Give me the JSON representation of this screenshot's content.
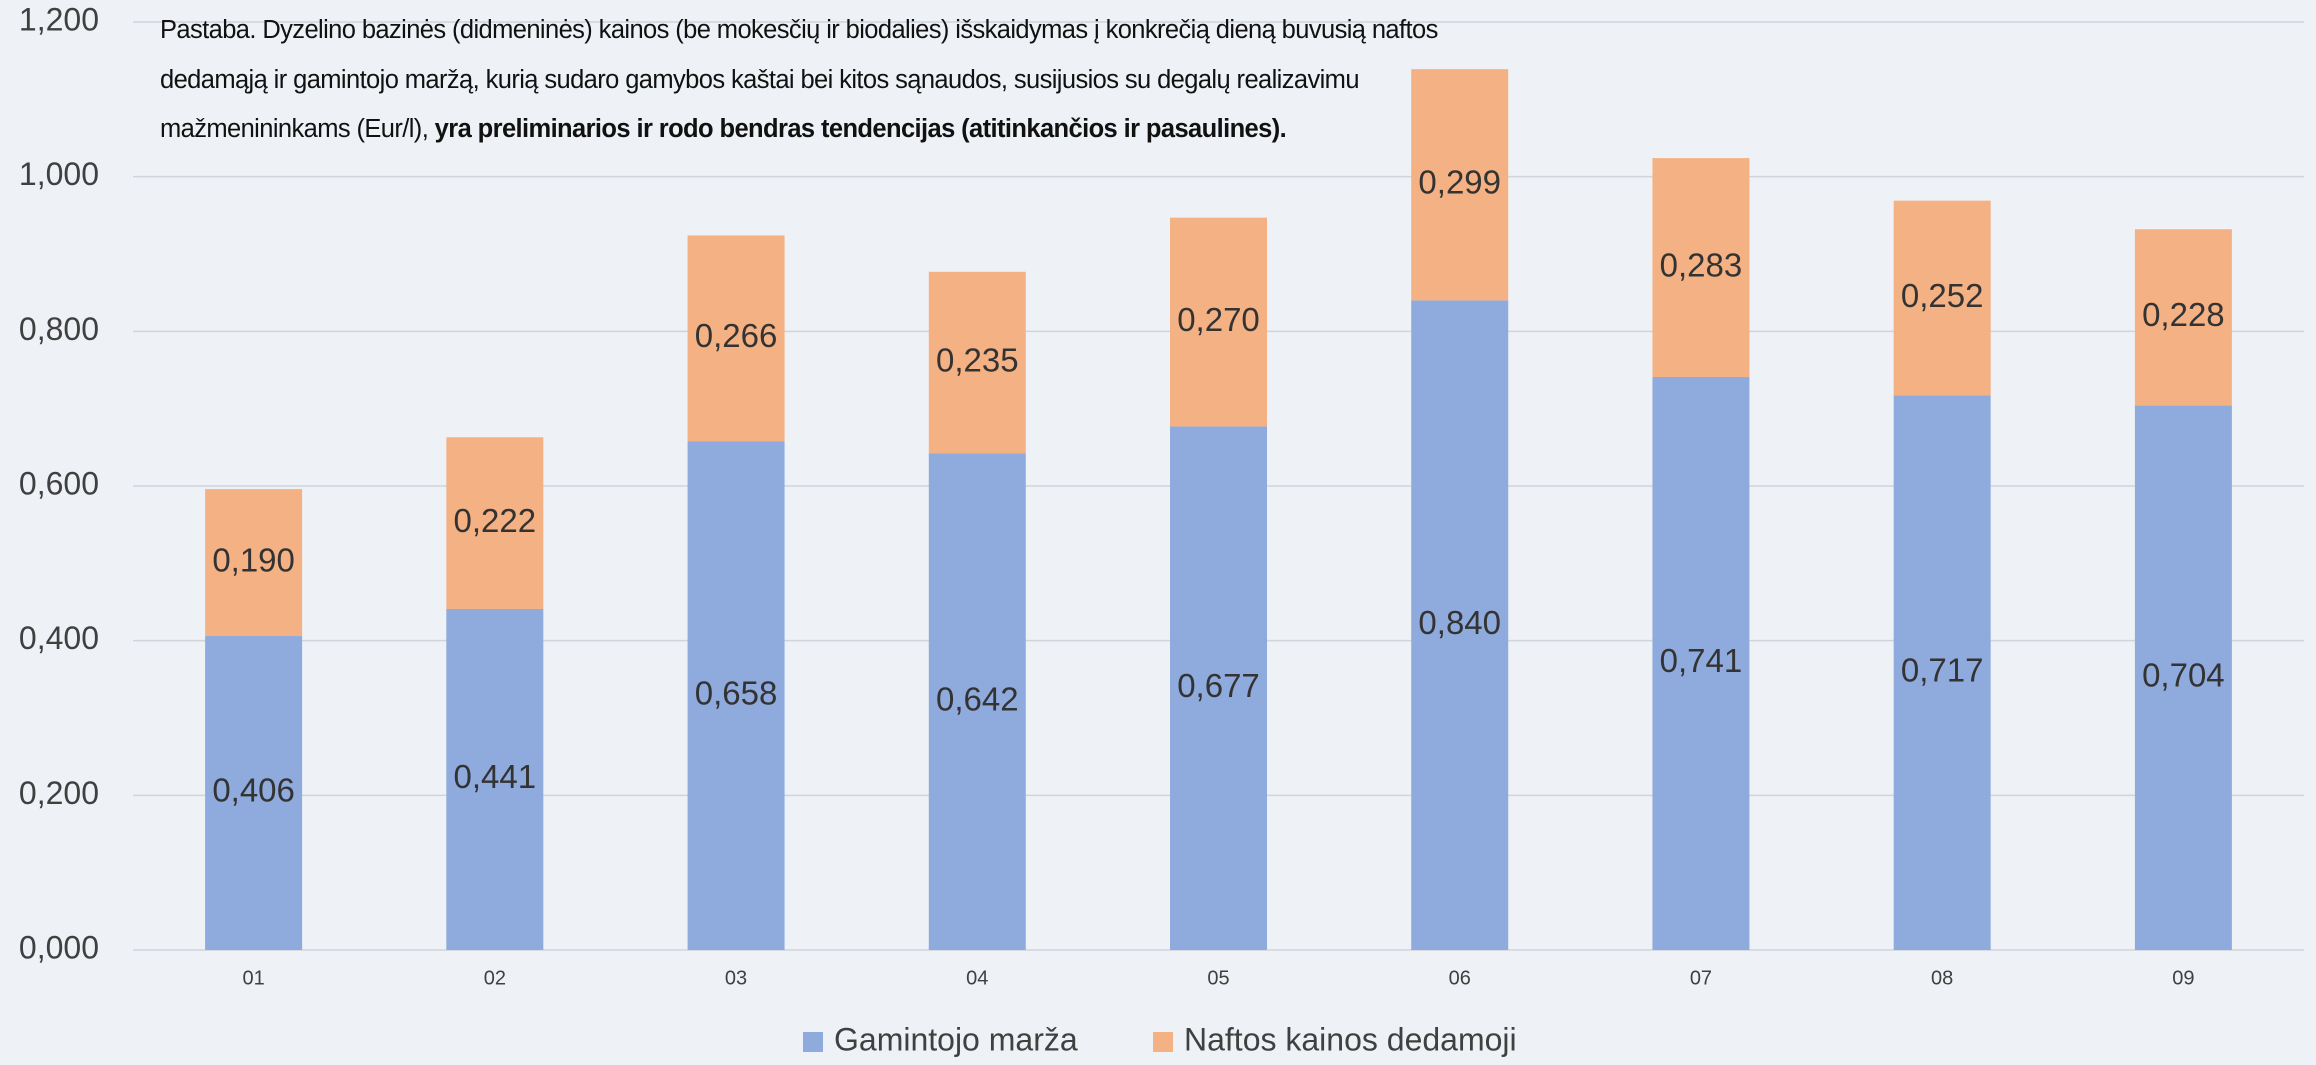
{
  "chart_data": {
    "type": "bar",
    "stacked": true,
    "note": [
      "Pastaba. Dyzelino bazinės (didmeninės) kainos (be mokesčių ir biodalies) išskaidymas į konkrečią dieną buvusią naftos dedamąją ir gamintojo maržą, kurią sudaro gamybos kaštai bei kitos sąnaudos, susijusios su degalų realizavimu mažmenininkams (Eur/l), ",
      "yra preliminarios ir rodo bendras tendencijas (atitinkančios ir pasaulines)."
    ],
    "categories": [
      "01",
      "02",
      "03",
      "04",
      "05",
      "06",
      "07",
      "08",
      "09"
    ],
    "series": [
      {
        "name": "Gamintojo marža",
        "color": "#8faadc",
        "values": [
          0.406,
          0.441,
          0.658,
          0.642,
          0.677,
          0.84,
          0.741,
          0.717,
          0.704
        ],
        "value_labels": [
          "0,406",
          "0,441",
          "0,658",
          "0,642",
          "0,677",
          "0,840",
          "0,741",
          "0,717",
          "0,704"
        ]
      },
      {
        "name": "Naftos kainos dedamoji",
        "color": "#f4b183",
        "values": [
          0.19,
          0.222,
          0.266,
          0.235,
          0.27,
          0.299,
          0.283,
          0.252,
          0.228
        ],
        "value_labels": [
          "0,190",
          "0,222",
          "0,266",
          "0,235",
          "0,270",
          "0,299",
          "0,283",
          "0,252",
          "0,228"
        ]
      }
    ],
    "ylim": [
      0,
      1.2
    ],
    "yticks": [
      {
        "value": 0,
        "label": "0,000"
      },
      {
        "value": 0.2,
        "label": "0,200"
      },
      {
        "value": 0.4,
        "label": "0,400"
      },
      {
        "value": 0.6,
        "label": "0,600"
      },
      {
        "value": 0.8,
        "label": "0,800"
      },
      {
        "value": 1.0,
        "label": "1,000"
      },
      {
        "value": 1.2,
        "label": "1,200"
      }
    ],
    "grid": true,
    "legend": "bottom"
  }
}
